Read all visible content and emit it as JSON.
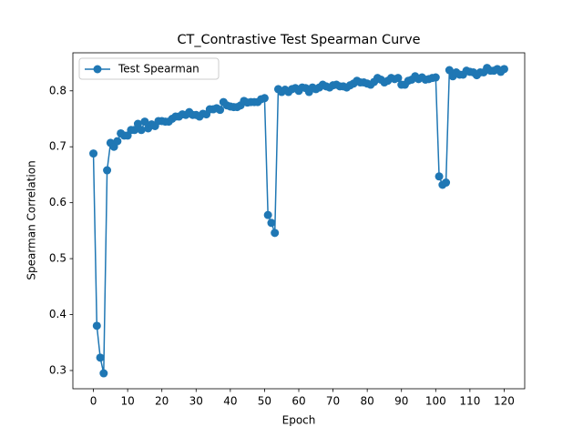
{
  "chart_data": {
    "type": "line",
    "title": "CT_Contrastive Test Spearman Curve",
    "x_label": "Epoch",
    "y_label": "Spearman Correlation",
    "x": [
      0,
      1,
      2,
      3,
      4,
      5,
      6,
      7,
      8,
      9,
      10,
      11,
      12,
      13,
      14,
      15,
      16,
      17,
      18,
      19,
      20,
      21,
      22,
      23,
      24,
      25,
      26,
      27,
      28,
      29,
      30,
      31,
      32,
      33,
      34,
      35,
      36,
      37,
      38,
      39,
      40,
      41,
      42,
      43,
      44,
      45,
      46,
      47,
      48,
      49,
      50,
      51,
      52,
      53,
      54,
      55,
      56,
      57,
      58,
      59,
      60,
      61,
      62,
      63,
      64,
      65,
      66,
      67,
      68,
      69,
      70,
      71,
      72,
      73,
      74,
      75,
      76,
      77,
      78,
      79,
      80,
      81,
      82,
      83,
      84,
      85,
      86,
      87,
      88,
      89,
      90,
      91,
      92,
      93,
      94,
      95,
      96,
      97,
      98,
      99,
      100,
      101,
      102,
      103,
      104,
      105,
      106,
      107,
      108,
      109,
      110,
      111,
      112,
      113,
      114,
      115,
      116,
      117,
      118,
      119,
      120
    ],
    "series": [
      {
        "name": "Test Spearman",
        "color": "#1f77b4",
        "values": [
          0.688,
          0.38,
          0.323,
          0.295,
          0.658,
          0.707,
          0.7,
          0.71,
          0.724,
          0.72,
          0.72,
          0.73,
          0.73,
          0.741,
          0.73,
          0.745,
          0.733,
          0.74,
          0.737,
          0.746,
          0.746,
          0.745,
          0.745,
          0.75,
          0.754,
          0.754,
          0.758,
          0.757,
          0.762,
          0.757,
          0.757,
          0.754,
          0.759,
          0.758,
          0.767,
          0.767,
          0.769,
          0.766,
          0.78,
          0.774,
          0.772,
          0.771,
          0.771,
          0.774,
          0.782,
          0.779,
          0.78,
          0.78,
          0.78,
          0.785,
          0.787,
          0.578,
          0.564,
          0.546,
          0.803,
          0.798,
          0.802,
          0.798,
          0.803,
          0.805,
          0.8,
          0.806,
          0.805,
          0.798,
          0.806,
          0.803,
          0.806,
          0.811,
          0.808,
          0.806,
          0.81,
          0.811,
          0.808,
          0.808,
          0.806,
          0.81,
          0.813,
          0.818,
          0.815,
          0.815,
          0.813,
          0.811,
          0.816,
          0.823,
          0.82,
          0.815,
          0.818,
          0.823,
          0.821,
          0.823,
          0.811,
          0.811,
          0.818,
          0.82,
          0.826,
          0.821,
          0.824,
          0.82,
          0.821,
          0.823,
          0.824,
          0.647,
          0.632,
          0.636,
          0.837,
          0.826,
          0.833,
          0.829,
          0.829,
          0.836,
          0.834,
          0.833,
          0.828,
          0.833,
          0.833,
          0.841,
          0.836,
          0.836,
          0.839,
          0.834,
          0.839
        ]
      }
    ],
    "xlim": [
      -6,
      126
    ],
    "ylim": [
      0.2674,
      0.868
    ],
    "xticks": [
      0,
      10,
      20,
      30,
      40,
      50,
      60,
      70,
      80,
      90,
      100,
      110,
      120
    ],
    "yticks": [
      0.3,
      0.4,
      0.5,
      0.6,
      0.7,
      0.8
    ],
    "legend": "upper left",
    "grid": false
  }
}
